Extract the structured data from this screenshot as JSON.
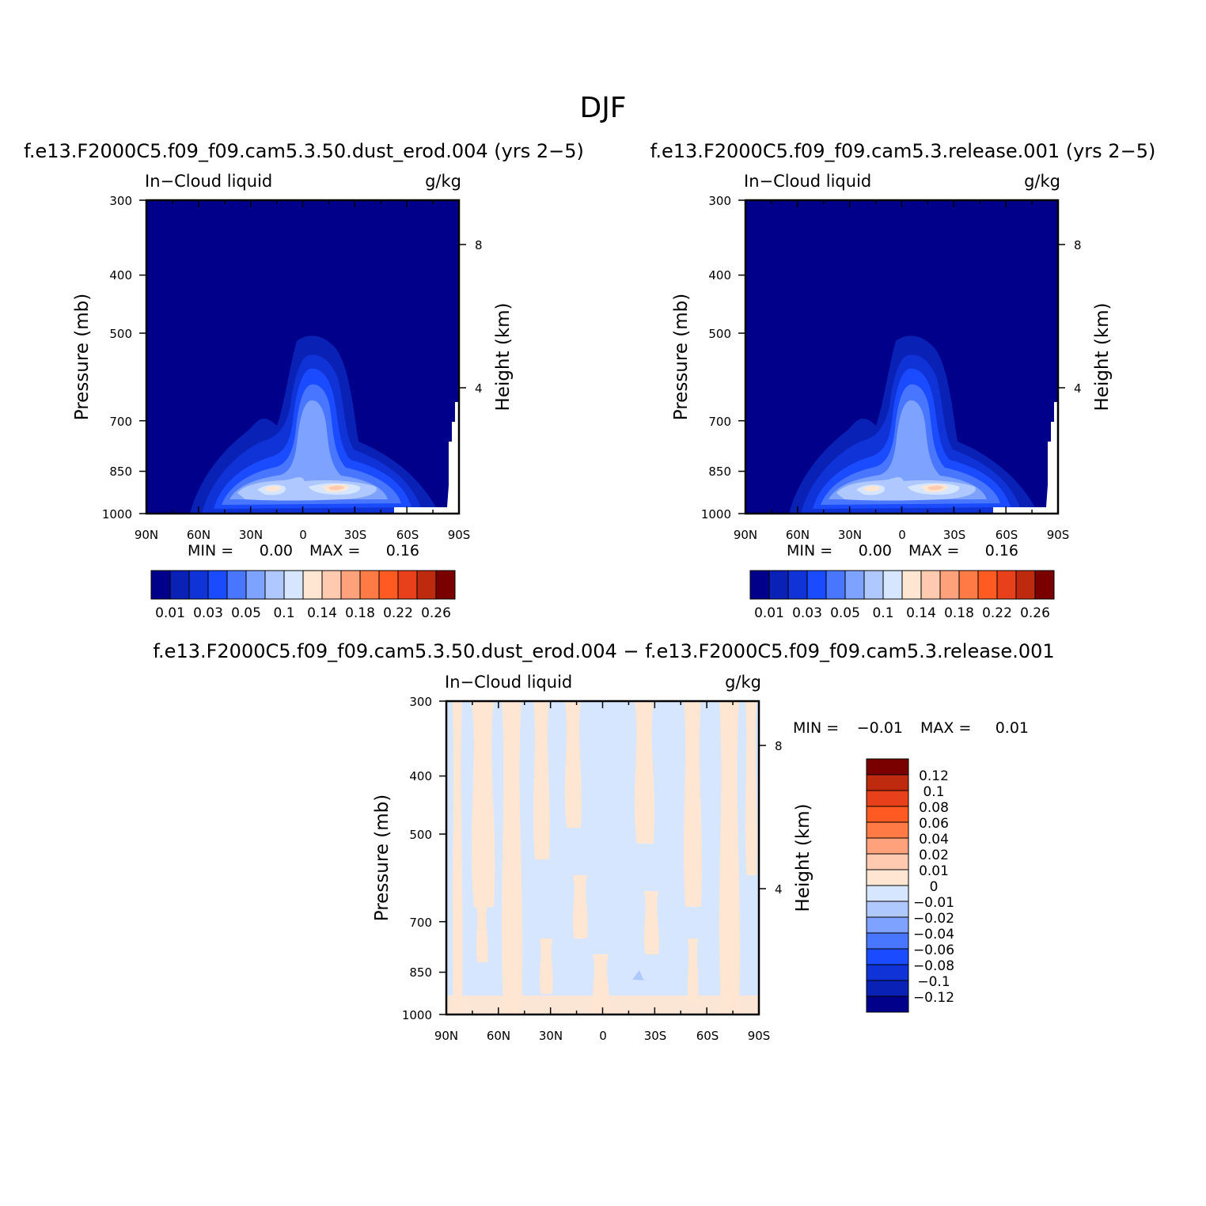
{
  "figure": {
    "season": "DJF",
    "colors": {
      "abs_levels": [
        "#00008B",
        "#0A21B5",
        "#0F33D6",
        "#1A4BFF",
        "#4876FF",
        "#7DA2FF",
        "#AFC8FF",
        "#D6E6FF",
        "#FFE6D2",
        "#FFCAB0",
        "#FFA27C",
        "#FF7A45",
        "#FF5A22",
        "#E8401A",
        "#BE2A0E",
        "#7A0000"
      ],
      "diff_levels": [
        "#00008B",
        "#0A21B5",
        "#0F33D6",
        "#1A4BFF",
        "#4876FF",
        "#7DA2FF",
        "#AFC8FF",
        "#D6E6FF",
        "#FFE6D2",
        "#FFCAB0",
        "#FFA27C",
        "#FF7A45",
        "#FF5A22",
        "#E8401A",
        "#BE2A0E",
        "#7A0000"
      ]
    }
  },
  "chart_data": [
    {
      "type": "heatmap",
      "id": "panel1",
      "title": "f.e13.F2000C5.f09_f09.cam5.3.50.dust_erod.004 (yrs 2−5)",
      "left_title": "In−Cloud liquid",
      "right_title": "g/kg",
      "ylabel": "Pressure (mb)",
      "y2label": "Height (km)",
      "x_ticks": [
        "90N",
        "60N",
        "30N",
        "0",
        "30S",
        "60S",
        "90S"
      ],
      "y_ticks": [
        "300",
        "400",
        "500",
        "700",
        "850",
        "1000"
      ],
      "y2_ticks": [
        "8",
        "4"
      ],
      "stats": {
        "min_label": "MIN =",
        "min": "0.00",
        "max_label": "MAX =",
        "max": "0.16"
      },
      "colorbar_labels": [
        "0.01",
        "0.03",
        "0.05",
        "0.1",
        "0.14",
        "0.18",
        "0.22",
        "0.26"
      ],
      "ylim": [
        300,
        1000
      ],
      "field": {
        "lat_center": 10,
        "lat_width": 10,
        "top_pressure": 520,
        "shoulder_pressure": 700,
        "shoulder_lats": [
          -60,
          60
        ],
        "peak_value": 0.16,
        "peak_lat": 20,
        "peak_pressure": 930
      }
    },
    {
      "type": "heatmap",
      "id": "panel2",
      "title": "f.e13.F2000C5.f09_f09.cam5.3.release.001 (yrs 2−5)",
      "left_title": "In−Cloud liquid",
      "right_title": "g/kg",
      "ylabel": "Pressure (mb)",
      "y2label": "Height (km)",
      "x_ticks": [
        "90N",
        "60N",
        "30N",
        "0",
        "30S",
        "60S",
        "90S"
      ],
      "y_ticks": [
        "300",
        "400",
        "500",
        "700",
        "850",
        "1000"
      ],
      "y2_ticks": [
        "8",
        "4"
      ],
      "stats": {
        "min_label": "MIN =",
        "min": "0.00",
        "max_label": "MAX =",
        "max": "0.16"
      },
      "colorbar_labels": [
        "0.01",
        "0.03",
        "0.05",
        "0.1",
        "0.14",
        "0.18",
        "0.22",
        "0.26"
      ],
      "ylim": [
        300,
        1000
      ]
    },
    {
      "type": "heatmap",
      "id": "panel3",
      "title": "f.e13.F2000C5.f09_f09.cam5.3.50.dust_erod.004 − f.e13.F2000C5.f09_f09.cam5.3.release.001",
      "left_title": "In−Cloud liquid",
      "right_title": "g/kg",
      "ylabel": "Pressure (mb)",
      "y2label": "Height (km)",
      "x_ticks": [
        "90N",
        "60N",
        "30N",
        "0",
        "30S",
        "60S",
        "90S"
      ],
      "y_ticks": [
        "300",
        "400",
        "500",
        "700",
        "850",
        "1000"
      ],
      "y2_ticks": [
        "8",
        "4"
      ],
      "stats": {
        "min_label": "MIN =",
        "min": "−0.01",
        "max_label": "MAX =",
        "max": "0.01"
      },
      "colorbar_labels": [
        "0.12",
        "0.1",
        "0.08",
        "0.06",
        "0.04",
        "0.02",
        "0.01",
        "0",
        "−0.01",
        "−0.02",
        "−0.04",
        "−0.06",
        "−0.08",
        "−0.1",
        "−0.12"
      ],
      "ylim": [
        300,
        1000
      ]
    }
  ]
}
